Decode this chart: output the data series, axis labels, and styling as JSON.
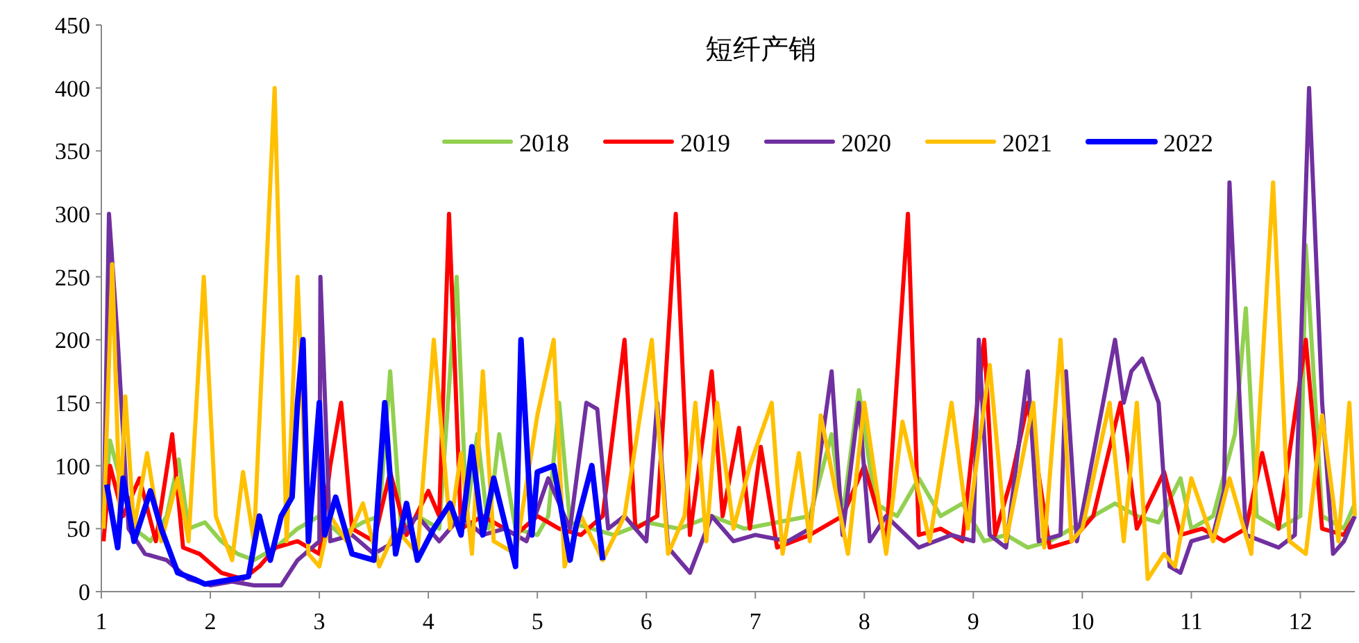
{
  "chart_data": {
    "type": "line",
    "title": "短纤产销",
    "xlim": [
      1,
      12.5
    ],
    "xticks": [
      1,
      2,
      3,
      4,
      5,
      6,
      7,
      8,
      9,
      10,
      11,
      12
    ],
    "ylim": [
      0,
      450
    ],
    "yticks": [
      0,
      50,
      100,
      150,
      200,
      250,
      300,
      350,
      400,
      450
    ],
    "grid": false,
    "legend": "top right",
    "marker": "none",
    "line_style": "solid",
    "series": [
      {
        "name": "2018",
        "color": "#92d050",
        "x": [
          1.02,
          1.08,
          1.2,
          1.3,
          1.45,
          1.6,
          1.71,
          1.8,
          1.95,
          2.1,
          2.25,
          2.4,
          2.6,
          2.8,
          3.0,
          3.2,
          3.4,
          3.55,
          3.65,
          3.75,
          3.9,
          4.1,
          4.26,
          4.35,
          4.45,
          4.55,
          4.65,
          4.8,
          5.0,
          5.1,
          5.2,
          5.3,
          5.5,
          5.7,
          6.0,
          6.3,
          6.6,
          6.9,
          7.2,
          7.5,
          7.7,
          7.8,
          7.95,
          8.1,
          8.3,
          8.5,
          8.7,
          8.9,
          9.1,
          9.3,
          9.5,
          9.7,
          9.9,
          10.1,
          10.3,
          10.5,
          10.7,
          10.9,
          11.0,
          11.2,
          11.4,
          11.5,
          11.6,
          11.8,
          12.0,
          12.05,
          12.2,
          12.4,
          12.5
        ],
        "values": [
          60,
          120,
          80,
          50,
          40,
          60,
          105,
          50,
          55,
          40,
          30,
          25,
          35,
          50,
          60,
          45,
          55,
          60,
          175,
          50,
          60,
          50,
          250,
          60,
          125,
          50,
          125,
          50,
          45,
          60,
          150,
          55,
          50,
          45,
          55,
          50,
          60,
          50,
          55,
          60,
          125,
          60,
          160,
          70,
          60,
          90,
          60,
          70,
          40,
          45,
          35,
          40,
          50,
          60,
          70,
          60,
          55,
          90,
          50,
          60,
          125,
          225,
          60,
          50,
          60,
          275,
          60,
          50,
          70
        ]
      },
      {
        "name": "2019",
        "color": "#ff0000",
        "x": [
          1.02,
          1.08,
          1.2,
          1.35,
          1.5,
          1.65,
          1.75,
          1.9,
          2.1,
          2.3,
          2.45,
          2.6,
          2.8,
          3.0,
          3.1,
          3.2,
          3.3,
          3.5,
          3.65,
          3.8,
          4.0,
          4.1,
          4.19,
          4.3,
          4.5,
          4.8,
          5.0,
          5.2,
          5.4,
          5.6,
          5.8,
          5.9,
          6.1,
          6.27,
          6.4,
          6.6,
          6.7,
          6.85,
          6.95,
          7.05,
          7.2,
          7.5,
          7.8,
          8.0,
          8.2,
          8.4,
          8.5,
          8.7,
          8.9,
          9.1,
          9.2,
          9.35,
          9.5,
          9.7,
          9.9,
          10.1,
          10.35,
          10.5,
          10.75,
          10.9,
          11.1,
          11.3,
          11.5,
          11.65,
          11.8,
          12.05,
          12.2,
          12.4,
          12.5
        ],
        "values": [
          40,
          100,
          60,
          90,
          40,
          125,
          35,
          30,
          15,
          10,
          20,
          35,
          40,
          30,
          100,
          150,
          50,
          40,
          95,
          45,
          80,
          60,
          300,
          50,
          60,
          45,
          60,
          50,
          45,
          60,
          200,
          50,
          60,
          300,
          45,
          175,
          60,
          130,
          50,
          115,
          35,
          45,
          60,
          100,
          40,
          300,
          45,
          50,
          40,
          200,
          45,
          90,
          150,
          35,
          40,
          60,
          150,
          50,
          95,
          45,
          50,
          40,
          50,
          110,
          50,
          200,
          50,
          45,
          60
        ]
      },
      {
        "name": "2020",
        "color": "#7030a0",
        "x": [
          1.02,
          1.07,
          1.15,
          1.25,
          1.4,
          1.6,
          1.8,
          2.0,
          2.2,
          2.4,
          2.65,
          2.8,
          3.0,
          3.01,
          3.1,
          3.3,
          3.5,
          3.7,
          3.9,
          4.1,
          4.3,
          4.5,
          4.7,
          4.9,
          5.1,
          5.3,
          5.45,
          5.55,
          5.65,
          5.8,
          6.0,
          6.1,
          6.2,
          6.4,
          6.6,
          6.8,
          7.0,
          7.3,
          7.5,
          7.7,
          7.8,
          7.95,
          8.05,
          8.2,
          8.5,
          8.8,
          9.0,
          9.05,
          9.15,
          9.3,
          9.5,
          9.6,
          9.8,
          9.85,
          9.95,
          10.3,
          10.38,
          10.45,
          10.55,
          10.7,
          10.8,
          10.9,
          11.0,
          11.2,
          11.3,
          11.35,
          11.5,
          11.8,
          11.95,
          12.08,
          12.2,
          12.3,
          12.4,
          12.5
        ],
        "values": [
          50,
          300,
          200,
          50,
          30,
          25,
          10,
          5,
          8,
          5,
          5,
          25,
          40,
          250,
          40,
          45,
          30,
          40,
          60,
          40,
          60,
          45,
          50,
          40,
          90,
          50,
          150,
          145,
          50,
          60,
          40,
          150,
          35,
          15,
          60,
          40,
          45,
          40,
          50,
          175,
          45,
          150,
          40,
          60,
          35,
          45,
          40,
          200,
          45,
          35,
          175,
          40,
          45,
          175,
          40,
          200,
          150,
          175,
          185,
          150,
          20,
          15,
          40,
          45,
          80,
          325,
          45,
          35,
          45,
          400,
          150,
          30,
          40,
          60
        ]
      },
      {
        "name": "2021",
        "color": "#ffc000",
        "x": [
          1.02,
          1.1,
          1.17,
          1.22,
          1.3,
          1.42,
          1.55,
          1.7,
          1.8,
          1.94,
          2.05,
          2.2,
          2.3,
          2.4,
          2.59,
          2.7,
          2.8,
          2.9,
          3.0,
          3.1,
          3.25,
          3.4,
          3.55,
          3.7,
          3.9,
          4.05,
          4.2,
          4.3,
          4.4,
          4.5,
          4.6,
          4.8,
          5.0,
          5.15,
          5.25,
          5.4,
          5.6,
          5.8,
          6.05,
          6.2,
          6.35,
          6.45,
          6.55,
          6.65,
          6.8,
          6.95,
          7.15,
          7.25,
          7.4,
          7.5,
          7.6,
          7.85,
          8.0,
          8.2,
          8.35,
          8.6,
          8.8,
          8.95,
          9.15,
          9.3,
          9.55,
          9.65,
          9.8,
          9.9,
          10.0,
          10.25,
          10.38,
          10.5,
          10.6,
          10.75,
          10.85,
          11.0,
          11.2,
          11.35,
          11.55,
          11.75,
          11.9,
          12.05,
          12.2,
          12.35,
          12.45,
          12.5
        ],
        "values": [
          50,
          260,
          60,
          155,
          50,
          110,
          40,
          90,
          40,
          250,
          60,
          25,
          95,
          40,
          400,
          40,
          250,
          30,
          20,
          60,
          40,
          70,
          20,
          50,
          30,
          200,
          50,
          110,
          30,
          175,
          40,
          30,
          140,
          200,
          20,
          60,
          25,
          60,
          200,
          30,
          60,
          150,
          40,
          150,
          50,
          100,
          150,
          30,
          110,
          40,
          140,
          30,
          150,
          30,
          135,
          40,
          150,
          50,
          180,
          40,
          150,
          35,
          200,
          40,
          50,
          150,
          40,
          150,
          10,
          30,
          20,
          90,
          40,
          90,
          30,
          325,
          40,
          30,
          140,
          40,
          150,
          60
        ]
      },
      {
        "name": "2022",
        "color": "#0000ff",
        "x": [
          1.05,
          1.15,
          1.2,
          1.3,
          1.45,
          1.55,
          1.7,
          1.85,
          1.95,
          2.35,
          2.45,
          2.55,
          2.65,
          2.75,
          2.8,
          2.85,
          2.9,
          3.0,
          3.05,
          3.15,
          3.3,
          3.5,
          3.6,
          3.7,
          3.8,
          3.9,
          4.05,
          4.2,
          4.3,
          4.4,
          4.5,
          4.6,
          4.8,
          4.85,
          4.95,
          5.0,
          5.15,
          5.3,
          5.35,
          5.5,
          5.6
        ],
        "values": [
          85,
          35,
          90,
          40,
          80,
          50,
          15,
          10,
          6,
          12,
          60,
          25,
          60,
          75,
          150,
          200,
          40,
          150,
          45,
          75,
          30,
          25,
          150,
          30,
          70,
          25,
          50,
          70,
          45,
          115,
          45,
          90,
          20,
          200,
          45,
          95,
          100,
          25,
          50,
          100,
          25
        ]
      }
    ]
  }
}
